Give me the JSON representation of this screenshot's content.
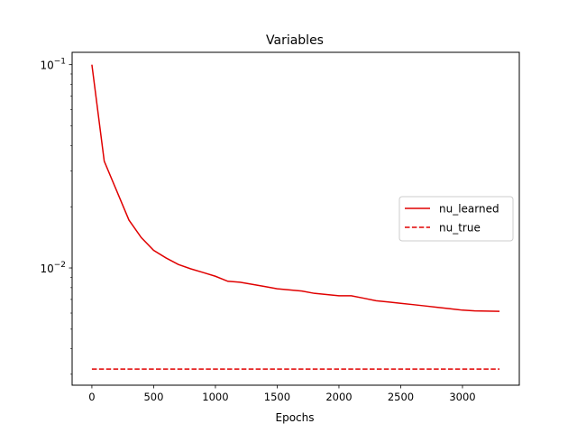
{
  "chart_data": {
    "type": "line",
    "title": "Variables",
    "xlabel": "Epochs",
    "ylabel": "",
    "yscale": "log",
    "xlim": [
      -160,
      3460
    ],
    "ylim": [
      0.00265,
      0.115
    ],
    "xticks": [
      0,
      500,
      1000,
      1500,
      2000,
      2500,
      3000
    ],
    "yticks_major": [
      {
        "value": 0.01,
        "base": "10",
        "exp": "−2"
      },
      {
        "value": 0.1,
        "base": "10",
        "exp": "−1"
      }
    ],
    "yticks_minor": [
      0.003,
      0.004,
      0.005,
      0.006,
      0.007,
      0.008,
      0.009,
      0.02,
      0.03,
      0.04,
      0.05,
      0.06,
      0.07,
      0.08,
      0.09
    ],
    "legend_position": "center-right",
    "grid": false,
    "series": [
      {
        "name": "nu_learned",
        "color": "#e00000",
        "style": "solid",
        "x": [
          0,
          100,
          200,
          300,
          400,
          500,
          600,
          700,
          800,
          900,
          1000,
          1100,
          1200,
          1300,
          1400,
          1500,
          1600,
          1700,
          1800,
          1900,
          2000,
          2100,
          2200,
          2300,
          2400,
          2500,
          2600,
          2700,
          2800,
          2900,
          3000,
          3100,
          3200,
          3300
        ],
        "y": [
          0.1,
          0.0335,
          0.024,
          0.0172,
          0.0141,
          0.0122,
          0.0112,
          0.0104,
          0.0099,
          0.0095,
          0.0091,
          0.0086,
          0.0085,
          0.0083,
          0.0081,
          0.0079,
          0.0078,
          0.0077,
          0.0075,
          0.0074,
          0.0073,
          0.0073,
          0.0071,
          0.0069,
          0.0068,
          0.0067,
          0.0066,
          0.0065,
          0.0064,
          0.0063,
          0.0062,
          0.00615,
          0.00613,
          0.00612
        ]
      },
      {
        "name": "nu_true",
        "color": "#e00000",
        "style": "dashed",
        "x": [
          0,
          3300
        ],
        "y": [
          0.00318,
          0.00318
        ]
      }
    ]
  }
}
